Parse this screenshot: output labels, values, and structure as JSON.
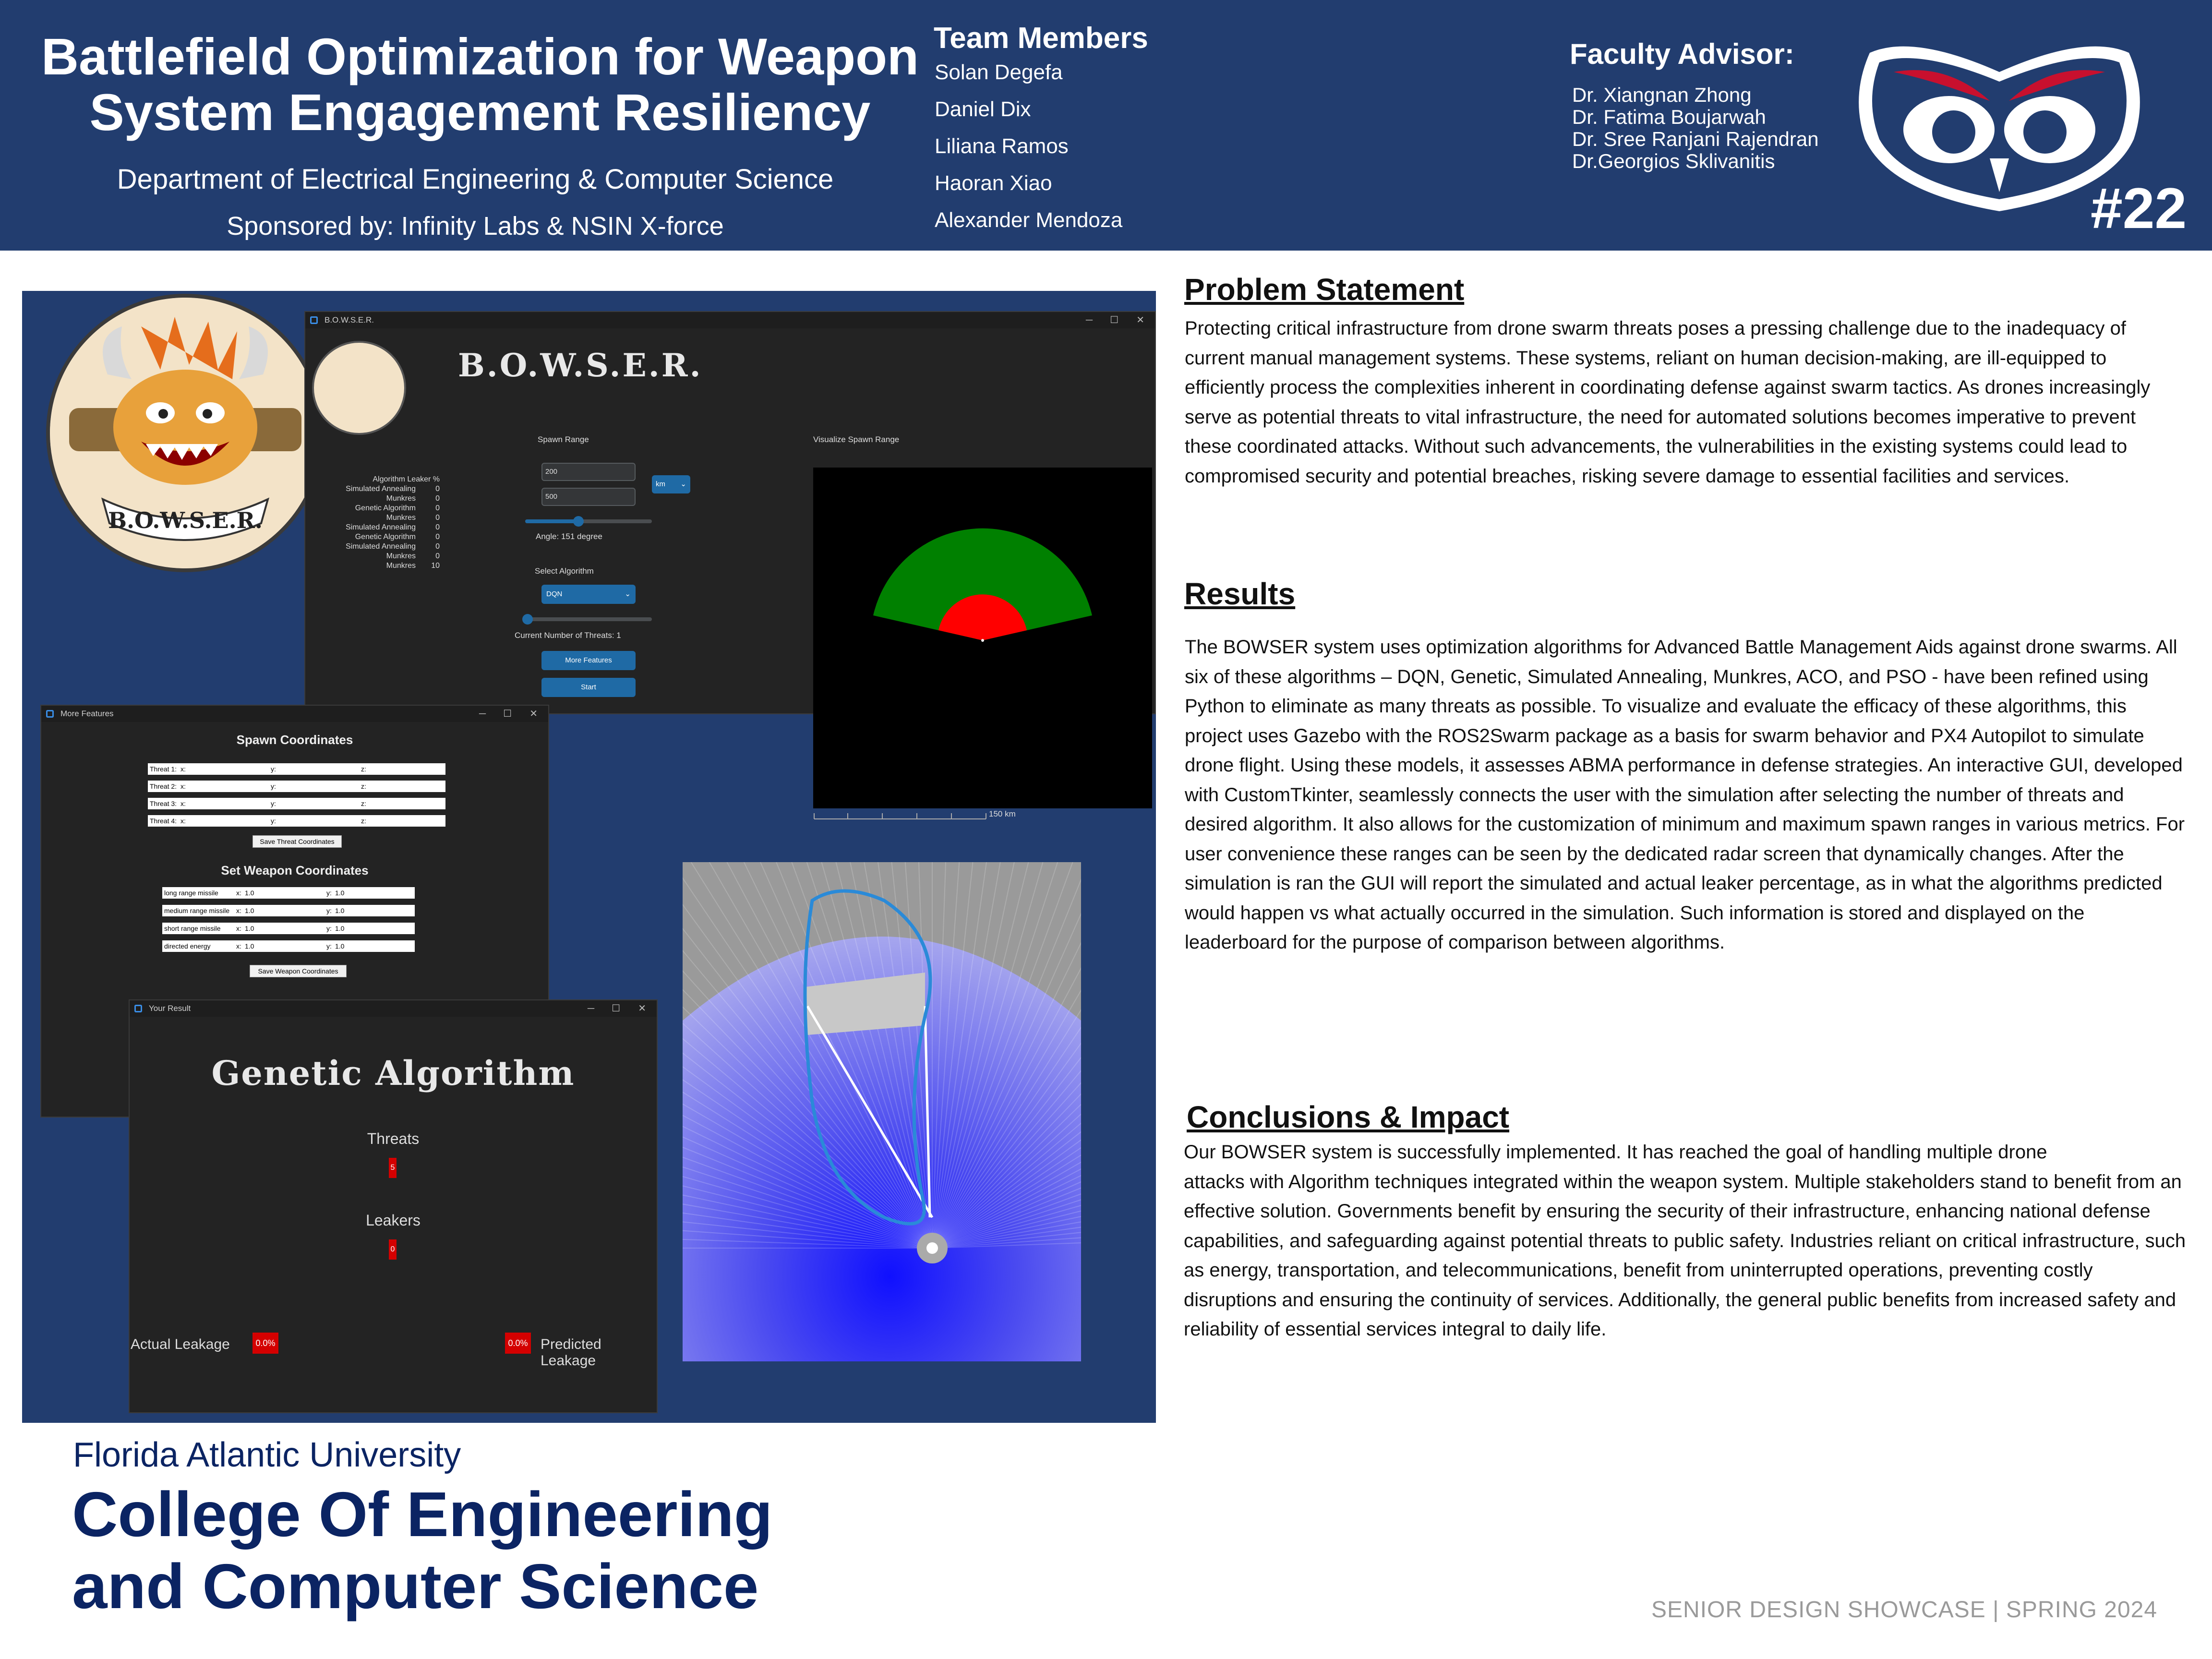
{
  "header": {
    "title_line1": "Battlefield Optimization for Weapon",
    "title_line2": "System Engagement Resiliency",
    "department": "Department of Electrical Engineering & Computer Science",
    "sponsor": "Sponsored by: Infinity Labs & NSIN X-force",
    "team_title": "Team Members",
    "team": [
      "Solan Degefa",
      "Daniel Dix",
      "Liliana Ramos",
      "Haoran Xiao",
      "Alexander Mendoza"
    ],
    "faculty_title": "Faculty Advisor:",
    "faculty": [
      "Dr. Xiangnan Zhong",
      "Dr. Fatima Boujarwah",
      "Dr. Sree Ranjani Rajendran",
      "Dr.Georgios Sklivanitis"
    ],
    "number": "#22"
  },
  "app": {
    "logo_text": "B.O.W.S.E.R.",
    "main_window": {
      "title": "B.O.W.S.E.R.",
      "heading": "B.O.W.S.E.R.",
      "leaderboard_header": "Algorithm  Leaker %",
      "leaderboard": [
        {
          "name": "Simulated Annealing",
          "value": "0"
        },
        {
          "name": "Munkres",
          "value": "0"
        },
        {
          "name": "Genetic Algorithm",
          "value": "0"
        },
        {
          "name": "Munkres",
          "value": "0"
        },
        {
          "name": "Simulated Annealing",
          "value": "0"
        },
        {
          "name": "Genetic Algorithm",
          "value": "0"
        },
        {
          "name": "Simulated Annealing",
          "value": "0"
        },
        {
          "name": "Munkres",
          "value": "0"
        },
        {
          "name": "Munkres",
          "value": "10"
        }
      ],
      "spawn_range_label": "Spawn Range",
      "spawn_min": "200",
      "spawn_max": "500",
      "unit": "km",
      "angle_label": "Angle: 151 degree",
      "angle_fraction": 0.42,
      "select_algorithm_label": "Select Algorithm",
      "algorithm": "DQN",
      "threat_count_label": "Current Number of Threats: 1",
      "threats_fraction": 0.02,
      "more_features_button": "More Features",
      "start_button": "Start",
      "visualize_label": "Visualize Spawn Range",
      "scale_label": "150 km"
    },
    "features_window": {
      "title": "More Features",
      "spawn_heading": "Spawn Coordinates",
      "threats": [
        "Threat 1:",
        "Threat 2:",
        "Threat 3:",
        "Threat 4:"
      ],
      "x_label": "x:",
      "y_label": "y:",
      "z_label": "z:",
      "save_threat_button": "Save Threat Coordinates",
      "weapon_heading": "Set Weapon Coordinates",
      "weapons": [
        {
          "name": "long range missile",
          "x": "1.0",
          "y": "1.0"
        },
        {
          "name": "medium range missile",
          "x": "1.0",
          "y": "1.0"
        },
        {
          "name": "short range missile",
          "x": "1.0",
          "y": "1.0"
        },
        {
          "name": "directed energy",
          "x": "1.0",
          "y": "1.0"
        }
      ],
      "save_weapon_button": "Save Weapon Coordinates"
    },
    "result_window": {
      "title": "Your Result",
      "heading": "Genetic Algorithm",
      "threats_label": "Threats",
      "threats_value": "5",
      "leakers_label": "Leakers",
      "leakers_value": "0",
      "actual_label": "Actual Leakage",
      "actual_value": "0.0%",
      "predicted_label": "Predicted Leakage",
      "predicted_value": "0.0%"
    }
  },
  "sections": {
    "problem_title": "Problem Statement",
    "problem_text": "Protecting critical infrastructure from drone swarm threats poses a pressing challenge due to the inadequacy of current manual management systems. These systems, reliant on human decision-making, are ill-equipped to efficiently process the complexities inherent in coordinating defense against swarm tactics. As drones increasingly serve as potential threats to vital infrastructure, the need for automated solutions becomes imperative to prevent these coordinated attacks. Without such advancements, the vulnerabilities in the existing systems could lead to compromised security and potential breaches, risking severe damage to essential facilities and services.",
    "results_title": "Results",
    "results_text": "The BOWSER system uses optimization algorithms for Advanced Battle Management Aids against drone swarms. All six of these algorithms – DQN, Genetic, Simulated Annealing, Munkres, ACO, and PSO - have been refined using Python to eliminate as many threats as possible. To visualize and evaluate the efficacy of these algorithms, this project uses Gazebo with the ROS2Swarm package as a basis for swarm behavior and PX4 Autopilot to simulate drone flight. Using these models, it assesses ABMA performance in defense strategies. An interactive GUI, developed with CustomTkinter, seamlessly connects the user with the simulation after selecting the number of threats and desired algorithm. It also allows for the customization of minimum and maximum spawn ranges in various metrics. For user convenience these ranges can be seen by the dedicated radar screen that dynamically changes. After the simulation is ran the GUI will report the simulated and actual leaker percentage,  as in what the algorithms predicted would happen vs what actually occurred in the simulation. Such information is stored and displayed on the leaderboard for the purpose of comparison between algorithms.",
    "conclusions_title": "Conclusions & Impact",
    "conclusions_line1": "Our BOWSER system is successfully implemented. It has reached the goal of handling multiple drone",
    "conclusions_text": "attacks with Algorithm techniques integrated within the weapon system. Multiple stakeholders stand to benefit from an effective solution. Governments benefit by ensuring the security of their infrastructure, enhancing national defense capabilities, and safeguarding against potential threats to public safety. Industries reliant on critical infrastructure, such as energy, transportation, and telecommunications, benefit from uninterrupted operations, preventing costly disruptions and ensuring the continuity of services. Additionally, the general public benefits from increased safety and reliability of essential services integral to daily life."
  },
  "footer": {
    "university": "Florida Atlantic University",
    "college_line1": "College Of Engineering",
    "college_line2": "and Computer Science",
    "showcase": "SENIOR DESIGN SHOWCASE | SPRING 2024"
  },
  "colors": {
    "navy": "#223d6f",
    "accent_blue": "#1f6aa5",
    "fau_blue": "#0b2463",
    "radar_outer": "#008000",
    "radar_inner": "#ff0000",
    "alert_red": "#d40000"
  }
}
